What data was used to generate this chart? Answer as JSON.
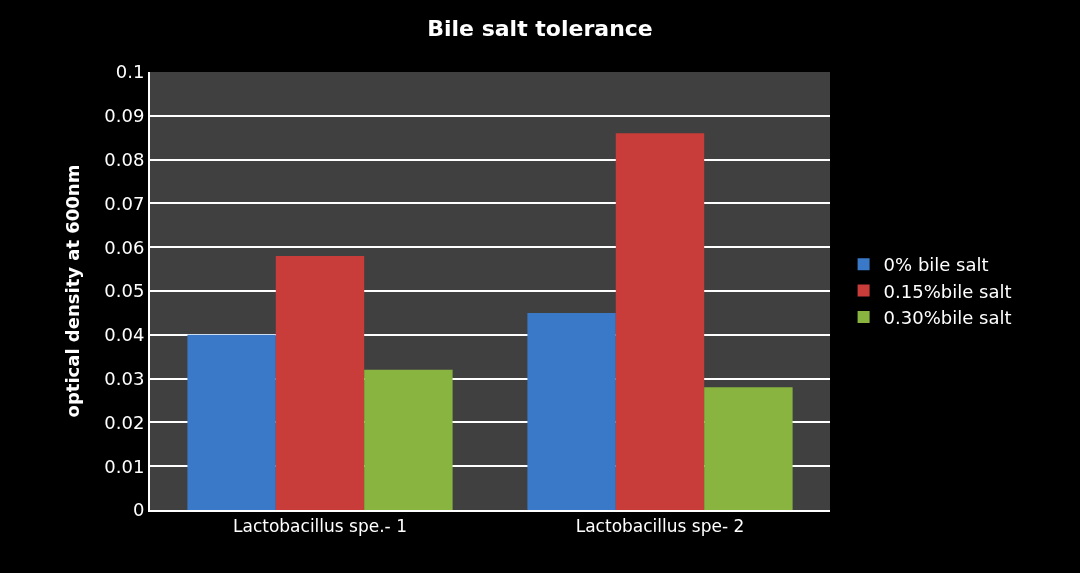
{
  "chart_data": {
    "type": "bar",
    "title": "Bile salt tolerance",
    "ylabel": "optical density at 600nm",
    "categories": [
      "Lactobacillus spe.- 1",
      "Lactobacillus spe- 2"
    ],
    "series": [
      {
        "name": "0% bile salt",
        "color": "#3a78c8",
        "values": [
          0.04,
          0.045
        ]
      },
      {
        "name": "0.15%bile salt",
        "color": "#c83c3a",
        "values": [
          0.058,
          0.086
        ]
      },
      {
        "name": "0.30%bile salt",
        "color": "#8ab440",
        "values": [
          0.032,
          0.028
        ]
      }
    ],
    "ylim": [
      0,
      0.1
    ],
    "yticks": [
      {
        "value": 0,
        "label": "0"
      },
      0.01,
      0.02,
      0.03,
      0.04,
      0.05,
      0.06,
      0.07,
      0.08,
      0.09,
      0.1
    ],
    "grid": "y",
    "legend": "right"
  }
}
